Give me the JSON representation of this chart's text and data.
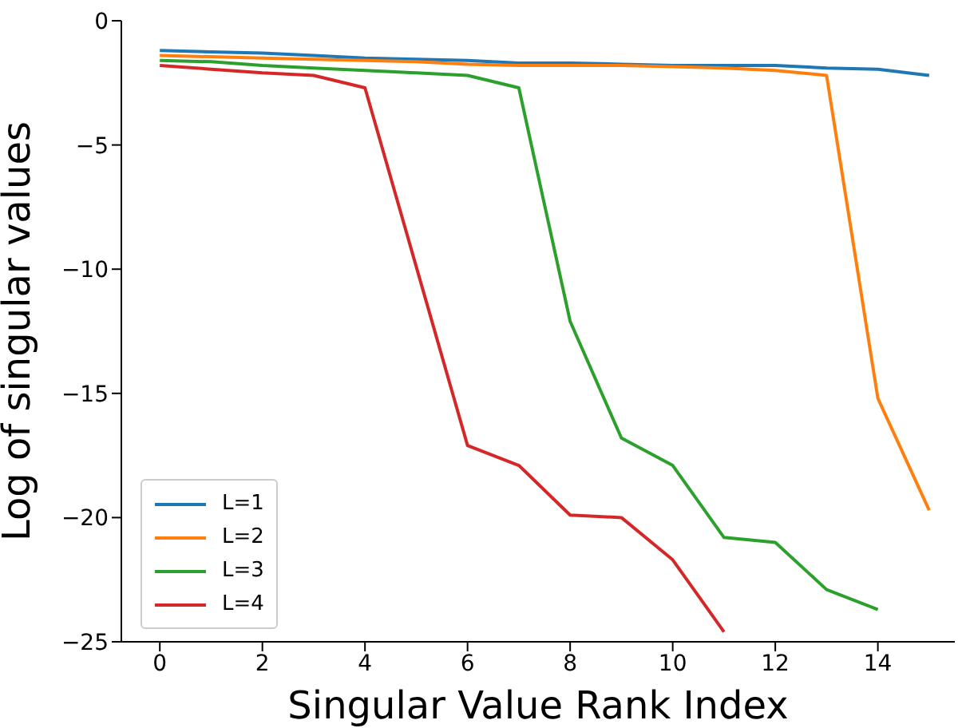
{
  "chart_data": {
    "type": "line",
    "xlabel": "Singular Value Rank Index",
    "ylabel": "Log of singular values",
    "x": [
      0,
      1,
      2,
      3,
      4,
      5,
      6,
      7,
      8,
      9,
      10,
      11,
      12,
      13,
      14,
      15
    ],
    "xlim": [
      -0.75,
      15.5
    ],
    "xticks": [
      0,
      2,
      4,
      6,
      8,
      10,
      12,
      14
    ],
    "ylim": [
      -25,
      0
    ],
    "yticks": [
      -25,
      -20,
      -15,
      -10,
      -5,
      0
    ],
    "legend": "bottom left",
    "grid": false,
    "line_style": "solid",
    "marker": "none",
    "series": [
      {
        "name": "L=1",
        "color": "#1f77b4",
        "values": [
          -1.2,
          -1.25,
          -1.3,
          -1.4,
          -1.5,
          -1.55,
          -1.6,
          -1.7,
          -1.7,
          -1.75,
          -1.8,
          -1.8,
          -1.8,
          -1.9,
          -1.95,
          -2.2
        ]
      },
      {
        "name": "L=2",
        "color": "#ff7f0e",
        "values": [
          -1.4,
          -1.45,
          -1.5,
          -1.55,
          -1.6,
          -1.65,
          -1.75,
          -1.8,
          -1.8,
          -1.8,
          -1.85,
          -1.9,
          -2.0,
          -2.2,
          -15.2,
          -19.7
        ]
      },
      {
        "name": "L=3",
        "color": "#2ca02c",
        "values": [
          -1.6,
          -1.65,
          -1.8,
          -1.9,
          -2.0,
          -2.1,
          -2.2,
          -2.7,
          -12.1,
          -16.8,
          -17.9,
          -20.8,
          -21.0,
          -22.9,
          -23.7,
          null
        ]
      },
      {
        "name": "L=4",
        "color": "#d62728",
        "values": [
          -1.8,
          -1.95,
          -2.1,
          -2.2,
          -2.7,
          -9.9,
          -17.1,
          -17.9,
          -19.9,
          -20.0,
          -21.7,
          -24.6,
          null,
          null,
          null,
          null
        ]
      }
    ]
  }
}
